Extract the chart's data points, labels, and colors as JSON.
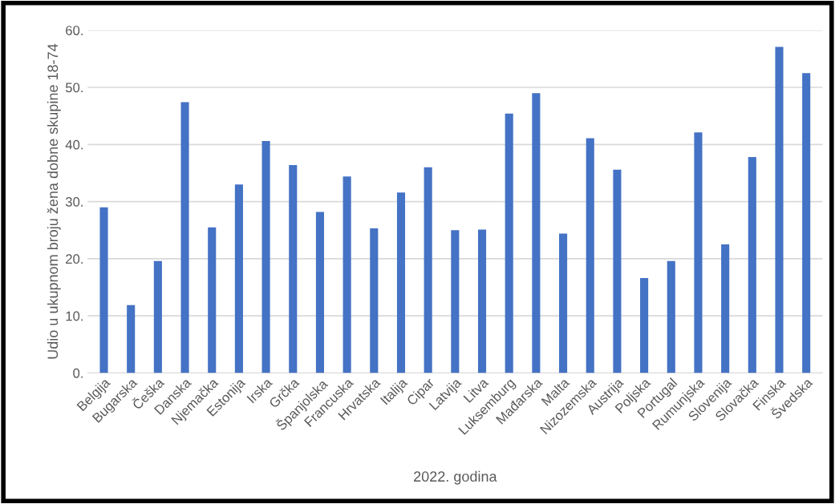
{
  "chart_data": {
    "type": "bar",
    "xlabel": "2022. godina",
    "ylabel": "Udio u ukupnom broju žena dobne skupine 18-74",
    "categories": [
      "Belgija",
      "Bugarska",
      "Češka",
      "Danska",
      "Njemačka",
      "Estonija",
      "Irska",
      "Grčka",
      "Španjolska",
      "Francuska",
      "Hrvatska",
      "Italija",
      "Cipar",
      "Latvija",
      "Litva",
      "Luksemburg",
      "Mađarska",
      "Malta",
      "Nizozemska",
      "Austrija",
      "Poljska",
      "Portugal",
      "Rumunjska",
      "Slovenija",
      "Slovačka",
      "Finska",
      "Švedska"
    ],
    "values": [
      29.0,
      11.9,
      19.6,
      47.4,
      25.5,
      33.0,
      40.6,
      36.4,
      28.2,
      34.4,
      25.3,
      31.6,
      36.0,
      25.0,
      25.1,
      45.4,
      49.0,
      24.4,
      41.1,
      35.6,
      16.6,
      19.6,
      42.1,
      22.5,
      37.8,
      57.1,
      52.5
    ],
    "color": "#4472c4",
    "ylim": [
      0,
      60
    ],
    "yticks": [
      {
        "value": 0,
        "label": "0."
      },
      {
        "value": 10,
        "label": "10."
      },
      {
        "value": 20,
        "label": "20."
      },
      {
        "value": 30,
        "label": "30."
      },
      {
        "value": 40,
        "label": "40."
      },
      {
        "value": 50,
        "label": "50."
      },
      {
        "value": 60,
        "label": "60."
      }
    ],
    "grid": "y",
    "legend": false
  }
}
